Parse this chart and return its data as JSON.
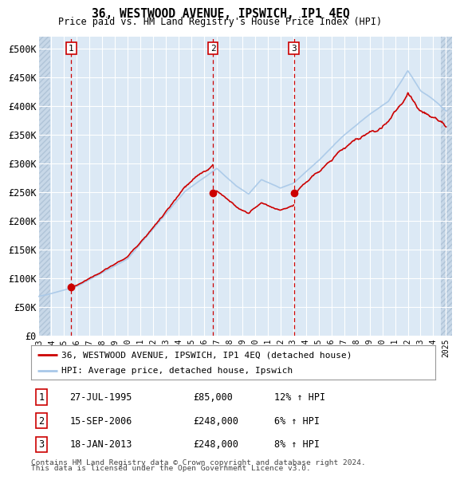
{
  "title": "36, WESTWOOD AVENUE, IPSWICH, IP1 4EQ",
  "subtitle": "Price paid vs. HM Land Registry's House Price Index (HPI)",
  "yticks": [
    0,
    50000,
    100000,
    150000,
    200000,
    250000,
    300000,
    350000,
    400000,
    450000,
    500000
  ],
  "ytick_labels": [
    "£0",
    "£50K",
    "£100K",
    "£150K",
    "£200K",
    "£250K",
    "£300K",
    "£350K",
    "£400K",
    "£450K",
    "£500K"
  ],
  "background_color": "#ffffff",
  "plot_bg_color": "#dce9f5",
  "hatch_color": "#c8d8e8",
  "grid_color": "#ffffff",
  "sale_color": "#cc0000",
  "hpi_color": "#a8c8e8",
  "vline_color": "#cc0000",
  "transactions": [
    {
      "label": "1",
      "date": "27-JUL-1995",
      "price": 85000,
      "hpi_pct": "12%",
      "x_year": 1995.57
    },
    {
      "label": "2",
      "date": "15-SEP-2006",
      "price": 248000,
      "hpi_pct": "6%",
      "x_year": 2006.71
    },
    {
      "label": "3",
      "date": "18-JAN-2013",
      "price": 248000,
      "hpi_pct": "8%",
      "x_year": 2013.05
    }
  ],
  "legend_sale_label": "36, WESTWOOD AVENUE, IPSWICH, IP1 4EQ (detached house)",
  "legend_hpi_label": "HPI: Average price, detached house, Ipswich",
  "footer1": "Contains HM Land Registry data © Crown copyright and database right 2024.",
  "footer2": "This data is licensed under the Open Government Licence v3.0.",
  "xtick_years": [
    1993,
    1994,
    1995,
    1996,
    1997,
    1998,
    1999,
    2000,
    2001,
    2002,
    2003,
    2004,
    2005,
    2006,
    2007,
    2008,
    2009,
    2010,
    2011,
    2012,
    2013,
    2014,
    2015,
    2016,
    2017,
    2018,
    2019,
    2020,
    2021,
    2022,
    2023,
    2024,
    2025
  ],
  "xlim": [
    1993.0,
    2025.5
  ],
  "ylim": [
    0,
    520000
  ]
}
